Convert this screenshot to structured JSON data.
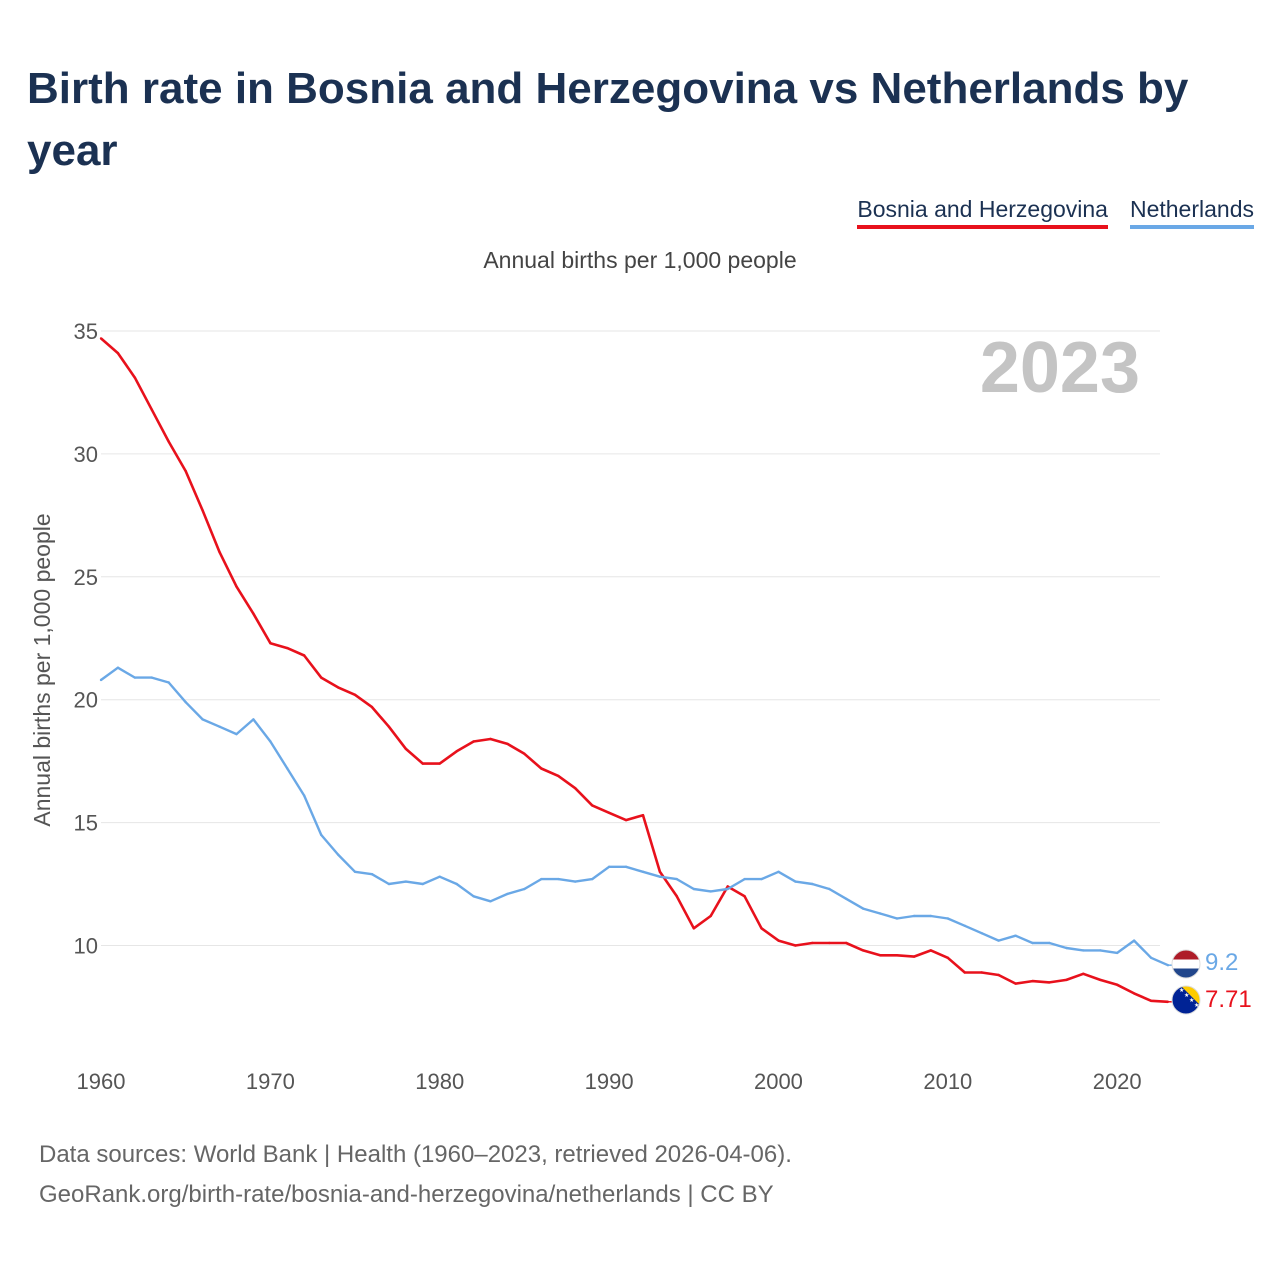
{
  "title": "Birth rate in Bosnia and Herzegovina vs Netherlands by year",
  "legend": {
    "bih_label": "Bosnia and Herzegovina",
    "nl_label": "Netherlands"
  },
  "subtitle": "Annual births per 1,000 people",
  "footer": {
    "line1": "Data sources: World Bank | Health (1960–2023, retrieved 2026-04-06).",
    "line2": "GeoRank.org/birth-rate/bosnia-and-herzegovina/netherlands | CC BY"
  },
  "colors": {
    "bih": "#e8111c",
    "nl": "#6aa8e6",
    "title": "#1b3152",
    "year_watermark": "#c4c4c4",
    "grid": "#e6e6e6"
  },
  "chart_data": {
    "type": "line",
    "title": "Birth rate in Bosnia and Herzegovina vs Netherlands by year",
    "subtitle": "Annual births per 1,000 people",
    "xlabel": "",
    "ylabel": "Annual births per 1,000 people",
    "year_label": "2023",
    "xlim": [
      1960,
      2023
    ],
    "ylim": [
      6.5,
      35
    ],
    "x_ticks": [
      1960,
      1970,
      1980,
      1990,
      2000,
      2010,
      2020
    ],
    "y_ticks": [
      10,
      15,
      20,
      25,
      30,
      35
    ],
    "grid": true,
    "legend_position": "top-right",
    "x": [
      1960,
      1961,
      1962,
      1963,
      1964,
      1965,
      1966,
      1967,
      1968,
      1969,
      1970,
      1971,
      1972,
      1973,
      1974,
      1975,
      1976,
      1977,
      1978,
      1979,
      1980,
      1981,
      1982,
      1983,
      1984,
      1985,
      1986,
      1987,
      1988,
      1989,
      1990,
      1991,
      1992,
      1993,
      1994,
      1995,
      1996,
      1997,
      1998,
      1999,
      2000,
      2001,
      2002,
      2003,
      2004,
      2005,
      2006,
      2007,
      2008,
      2009,
      2010,
      2011,
      2012,
      2013,
      2014,
      2015,
      2016,
      2017,
      2018,
      2019,
      2020,
      2021,
      2022,
      2023
    ],
    "series": [
      {
        "name": "Bosnia and Herzegovina",
        "key": "bih",
        "flag": "bosnia-flag",
        "end_label": "7.71",
        "values": [
          34.7,
          34.1,
          33.1,
          31.8,
          30.5,
          29.3,
          27.7,
          26.0,
          24.6,
          23.5,
          22.3,
          22.1,
          21.8,
          20.9,
          20.5,
          20.2,
          19.7,
          18.9,
          18.0,
          17.4,
          17.4,
          17.9,
          18.3,
          18.4,
          18.2,
          17.8,
          17.2,
          16.9,
          16.4,
          15.7,
          15.4,
          15.1,
          15.3,
          13.0,
          12.0,
          10.7,
          11.2,
          12.4,
          12.0,
          10.7,
          10.2,
          10.0,
          10.1,
          10.1,
          10.1,
          9.8,
          9.6,
          9.6,
          9.55,
          9.8,
          9.5,
          8.9,
          8.9,
          8.8,
          8.45,
          8.55,
          8.5,
          8.6,
          8.85,
          8.6,
          8.4,
          8.05,
          7.75,
          7.71
        ]
      },
      {
        "name": "Netherlands",
        "key": "nl",
        "flag": "netherlands-flag",
        "end_label": "9.2",
        "values": [
          20.8,
          21.3,
          20.9,
          20.9,
          20.7,
          19.9,
          19.2,
          18.9,
          18.6,
          19.2,
          18.3,
          17.2,
          16.1,
          14.5,
          13.7,
          13.0,
          12.9,
          12.5,
          12.6,
          12.5,
          12.8,
          12.5,
          12.0,
          11.8,
          12.1,
          12.3,
          12.7,
          12.7,
          12.6,
          12.7,
          13.2,
          13.2,
          13.0,
          12.8,
          12.7,
          12.3,
          12.2,
          12.3,
          12.7,
          12.7,
          13.0,
          12.6,
          12.5,
          12.3,
          11.9,
          11.5,
          11.3,
          11.1,
          11.2,
          11.2,
          11.1,
          10.8,
          10.5,
          10.2,
          10.4,
          10.1,
          10.1,
          9.9,
          9.8,
          9.8,
          9.7,
          10.2,
          9.5,
          9.2
        ]
      }
    ]
  }
}
